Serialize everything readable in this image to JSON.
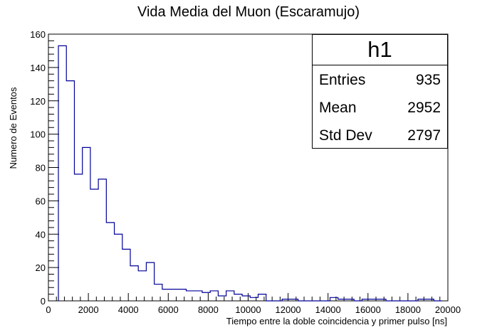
{
  "chart_data": {
    "type": "bar",
    "title": "Vida  Media del Muon (Escaramujo)",
    "xlabel": "Tiempo entre la doble coincidencia y primer pulso [ns]",
    "ylabel": "Numero de Eventos",
    "xlim": [
      0,
      20000
    ],
    "ylim": [
      0,
      160
    ],
    "x_ticks": [
      "0",
      "2000",
      "4000",
      "6000",
      "8000",
      "10000",
      "12000",
      "14000",
      "16000",
      "18000",
      "20000"
    ],
    "y_ticks": [
      "0",
      "20",
      "40",
      "60",
      "80",
      "100",
      "120",
      "140",
      "160"
    ],
    "bin_edges_start": 500,
    "bin_width": 400,
    "values": [
      153,
      132,
      76,
      92,
      67,
      73,
      47,
      40,
      31,
      21,
      18,
      23,
      10,
      7,
      7,
      7,
      6,
      6,
      5,
      6,
      3,
      6,
      4,
      3,
      2,
      4,
      0,
      0,
      1,
      1,
      0,
      0,
      0,
      0,
      2,
      1,
      1,
      0,
      1,
      1,
      1,
      0,
      0,
      0,
      0,
      1,
      1,
      0
    ],
    "line_color": "#000099",
    "grid": false,
    "stats": {
      "title": "h1",
      "rows": [
        {
          "label": "Entries",
          "value": "935"
        },
        {
          "label": "Mean",
          "value": "2952"
        },
        {
          "label": "Std Dev",
          "value": "2797"
        }
      ]
    }
  }
}
